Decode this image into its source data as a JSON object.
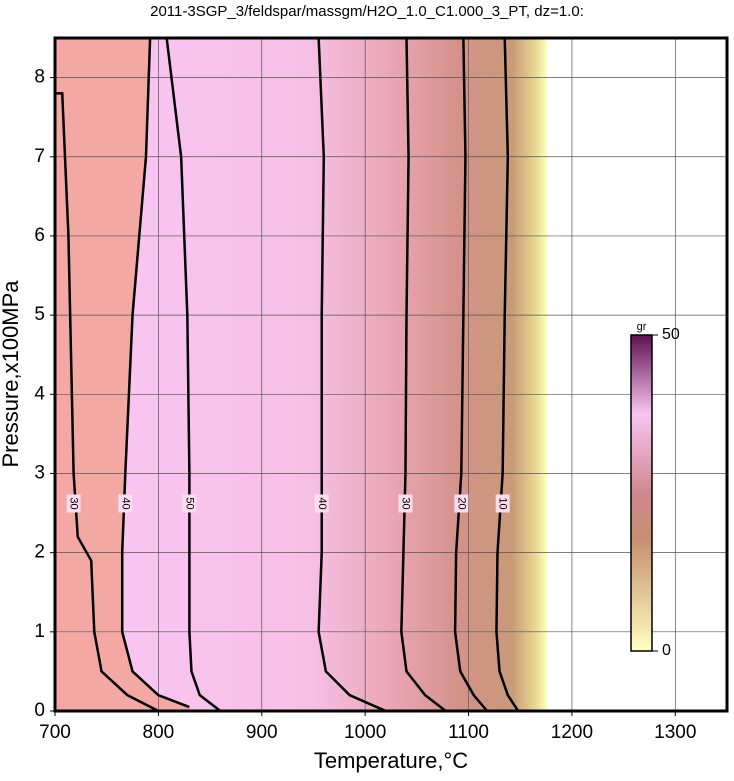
{
  "chart_data": {
    "type": "contour",
    "title": "2011-3SGP_3/feldspar/massgm/H2O_1.0_C1.000_3_PT, dz=1.0:",
    "x_label": "Temperature,°C",
    "y_label": "Pressure,x100MPa",
    "xlim": [
      700,
      1350
    ],
    "ylim": [
      0,
      8.5
    ],
    "xticks": [
      700,
      800,
      900,
      1000,
      1100,
      1200,
      1300
    ],
    "yticks": [
      0,
      1,
      2,
      3,
      4,
      5,
      6,
      7,
      8
    ],
    "grid": true,
    "series": [
      {
        "name": "10",
        "color": "#000000",
        "x": [
          1135,
          1138,
          1135,
          1133,
          1128,
          1127,
          1130,
          1138,
          1148
        ],
        "y": [
          8.5,
          7,
          5,
          3,
          2,
          1,
          0.5,
          0.2,
          0
        ]
      },
      {
        "name": "20",
        "color": "#000000",
        "x": [
          1095,
          1097,
          1095,
          1093,
          1088,
          1087,
          1092,
          1105,
          1118
        ],
        "y": [
          8.5,
          7,
          5,
          3,
          2,
          1,
          0.5,
          0.2,
          0
        ]
      },
      {
        "name": "30",
        "color": "#000000",
        "x": [
          1040,
          1042,
          1040,
          1039,
          1037,
          1035,
          1040,
          1058,
          1078
        ],
        "y": [
          8.5,
          7,
          5,
          3,
          2,
          1,
          0.5,
          0.2,
          0
        ]
      },
      {
        "name": "40",
        "color": "#000000",
        "x": [
          955,
          960,
          958,
          958,
          958,
          955,
          962,
          985,
          1020
        ],
        "y": [
          8.5,
          7,
          5,
          3,
          2,
          1,
          0.5,
          0.2,
          0
        ]
      },
      {
        "name": "50",
        "color": "#000000",
        "x": [
          808,
          822,
          828,
          830,
          830,
          830,
          832,
          840,
          860
        ],
        "y": [
          8.5,
          7,
          5,
          3,
          2,
          1,
          0.5,
          0.2,
          0
        ]
      },
      {
        "name": "30",
        "color": "#000000",
        "x": [
          700,
          707,
          713,
          718,
          722,
          735,
          738,
          745,
          770,
          800
        ],
        "y": [
          7.8,
          7.8,
          6,
          3,
          2.2,
          1.9,
          1,
          0.5,
          0.2,
          0
        ]
      },
      {
        "name": "40",
        "color": "#000000",
        "x": [
          792,
          788,
          775,
          768,
          765,
          765,
          775,
          800,
          830
        ],
        "y": [
          8.5,
          7,
          5,
          3,
          2,
          1,
          0.5,
          0.2,
          0.05
        ]
      }
    ],
    "colorbar": {
      "label": "gr",
      "lim": [
        0,
        50
      ],
      "ticks": [
        0,
        50
      ]
    }
  }
}
